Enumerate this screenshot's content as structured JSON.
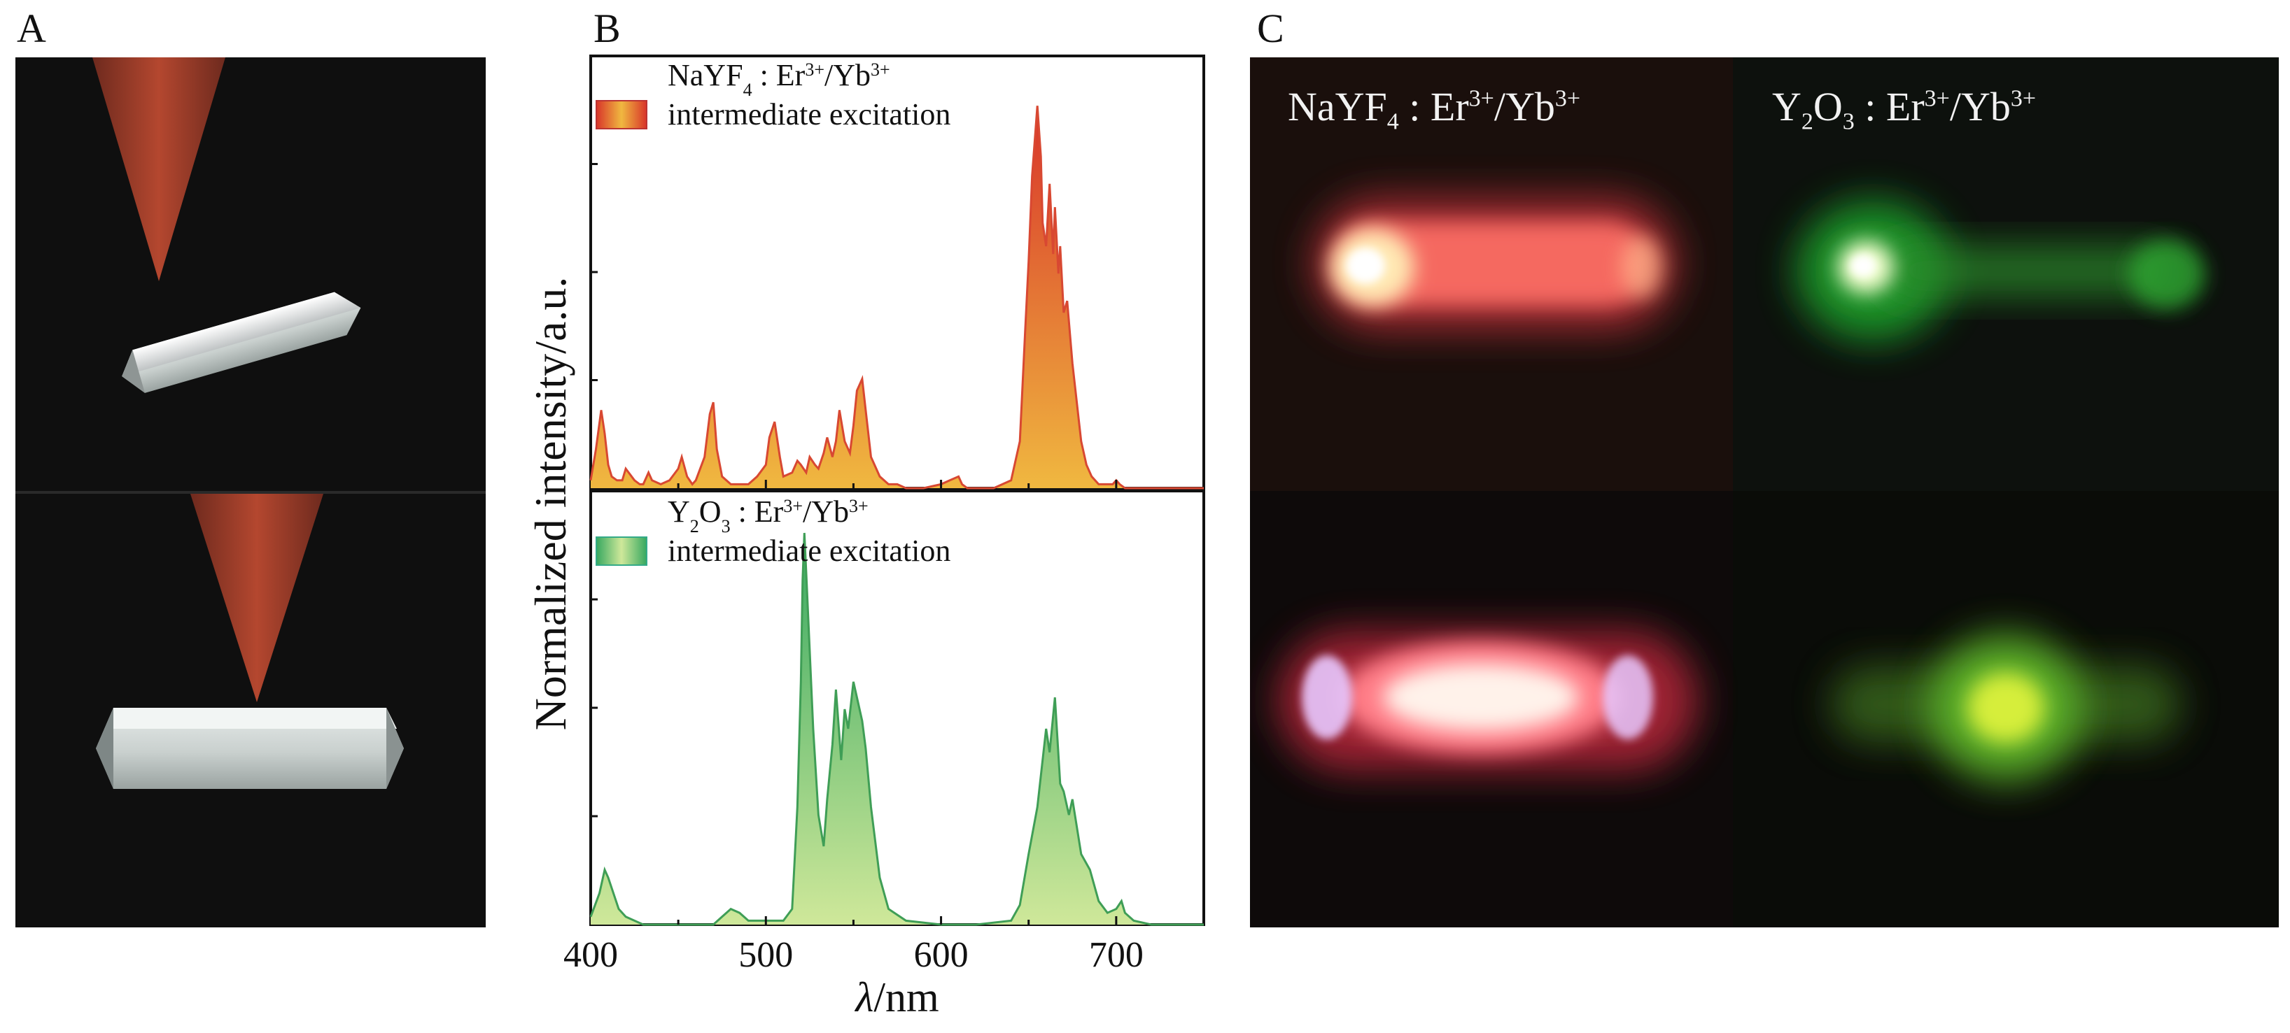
{
  "panels": {
    "a": "A",
    "b": "B",
    "c": "C"
  },
  "chart_data": [
    {
      "type": "area",
      "panel": "top",
      "legend": {
        "formula": "NaYF4",
        "sub": "4",
        "dopant": "Er3+/Yb3+",
        "label": "intermediate excitation"
      },
      "color": "#d84832",
      "fill_stops": [
        "#d8342a",
        "#f0b840"
      ],
      "xlim": [
        400,
        750
      ],
      "ylim": [
        0,
        1
      ],
      "x": [
        400,
        403,
        406,
        408,
        410,
        412,
        415,
        418,
        420,
        425,
        428,
        430,
        433,
        435,
        440,
        445,
        450,
        452,
        455,
        458,
        460,
        465,
        468,
        470,
        472,
        475,
        480,
        490,
        495,
        500,
        502,
        505,
        508,
        510,
        515,
        518,
        520,
        523,
        525,
        528,
        530,
        533,
        535,
        538,
        540,
        542,
        545,
        548,
        550,
        552,
        555,
        557,
        560,
        565,
        570,
        575,
        580,
        590,
        600,
        605,
        610,
        612,
        615,
        620,
        630,
        640,
        645,
        648,
        650,
        652,
        655,
        657,
        658,
        660,
        662,
        664,
        665,
        667,
        668,
        670,
        672,
        675,
        678,
        680,
        683,
        686,
        690,
        695,
        698,
        700,
        702,
        705,
        710,
        720,
        750
      ],
      "y": [
        0.02,
        0.1,
        0.2,
        0.14,
        0.06,
        0.03,
        0.02,
        0.02,
        0.05,
        0.02,
        0.01,
        0.01,
        0.04,
        0.02,
        0.01,
        0.02,
        0.05,
        0.08,
        0.03,
        0.01,
        0.02,
        0.08,
        0.19,
        0.22,
        0.1,
        0.03,
        0.01,
        0.01,
        0.03,
        0.06,
        0.13,
        0.17,
        0.08,
        0.03,
        0.04,
        0.07,
        0.06,
        0.04,
        0.08,
        0.06,
        0.05,
        0.09,
        0.13,
        0.08,
        0.12,
        0.2,
        0.12,
        0.09,
        0.16,
        0.25,
        0.28,
        0.2,
        0.08,
        0.03,
        0.01,
        0.01,
        0.0,
        0.0,
        0.01,
        0.02,
        0.03,
        0.01,
        0.0,
        0.0,
        0.0,
        0.02,
        0.12,
        0.4,
        0.58,
        0.8,
        0.98,
        0.85,
        0.68,
        0.62,
        0.78,
        0.6,
        0.72,
        0.55,
        0.62,
        0.45,
        0.48,
        0.32,
        0.2,
        0.12,
        0.06,
        0.03,
        0.01,
        0.01,
        0.01,
        0.02,
        0.01,
        0.0,
        0.0,
        0.0,
        0.0
      ]
    },
    {
      "type": "area",
      "panel": "bottom",
      "legend": {
        "formula": "Y2O3",
        "sub": "2,3",
        "dopant": "Er3+/Yb3+",
        "label": "intermediate excitation"
      },
      "color": "#3f9e56",
      "fill_stops": [
        "#36a860",
        "#cfe89a"
      ],
      "xlim": [
        400,
        750
      ],
      "ylim": [
        0,
        1
      ],
      "x": [
        400,
        405,
        408,
        410,
        413,
        416,
        420,
        430,
        450,
        470,
        475,
        480,
        485,
        490,
        500,
        510,
        515,
        518,
        520,
        521,
        522,
        523,
        525,
        527,
        530,
        533,
        535,
        538,
        540,
        543,
        545,
        547,
        550,
        552,
        555,
        557,
        560,
        565,
        570,
        580,
        600,
        620,
        640,
        645,
        650,
        655,
        658,
        660,
        662,
        665,
        668,
        670,
        673,
        675,
        680,
        685,
        690,
        695,
        700,
        703,
        705,
        710,
        720,
        750
      ],
      "y": [
        0.02,
        0.08,
        0.14,
        0.12,
        0.08,
        0.04,
        0.02,
        0.0,
        0.0,
        0.0,
        0.02,
        0.04,
        0.03,
        0.01,
        0.01,
        0.01,
        0.04,
        0.3,
        0.62,
        0.88,
        1.0,
        0.9,
        0.7,
        0.5,
        0.28,
        0.2,
        0.32,
        0.46,
        0.6,
        0.42,
        0.55,
        0.5,
        0.62,
        0.58,
        0.52,
        0.45,
        0.3,
        0.12,
        0.04,
        0.01,
        0.0,
        0.0,
        0.01,
        0.05,
        0.18,
        0.3,
        0.42,
        0.5,
        0.44,
        0.58,
        0.36,
        0.34,
        0.28,
        0.32,
        0.18,
        0.14,
        0.06,
        0.03,
        0.04,
        0.06,
        0.03,
        0.01,
        0.0,
        0.0
      ]
    }
  ],
  "axes": {
    "ylabel": "Normalized intensity/a.u.",
    "xlabel_italic": "λ",
    "xlabel_unit": "/nm",
    "xticks": [
      400,
      500,
      600,
      700
    ]
  },
  "panel_c": {
    "left_title": {
      "base": "NaYF",
      "sub": "4",
      "sep": " : Er",
      "sup1": "3+",
      "mid": "/Yb",
      "sup2": "3+"
    },
    "right_title": {
      "base": "Y",
      "sub1": "2",
      "mid0": "O",
      "sub2": "3",
      "sep": " : Er",
      "sup1": "3+",
      "mid": "/Yb",
      "sup2": "3+"
    }
  },
  "colors": {
    "nayf_emission": "#ff5a5a",
    "y2o3_emission": "#5bd64a",
    "cone": "#a0402c",
    "crystal": "#d8dcdc"
  }
}
